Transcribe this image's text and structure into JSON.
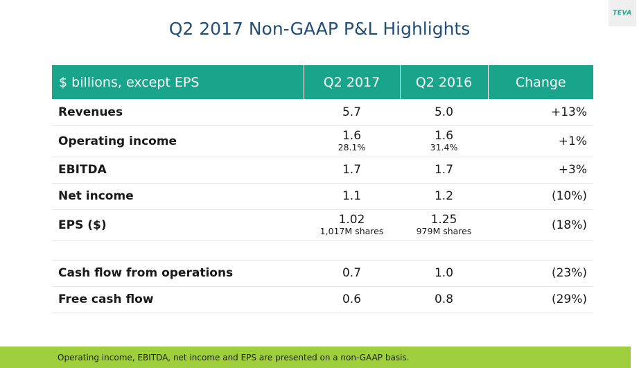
{
  "logo": {
    "text": "TEVA"
  },
  "title": "Q2 2017 Non-GAAP P&L Highlights",
  "table": {
    "headers": [
      "$ billions, except EPS",
      "Q2 2017",
      "Q2 2016",
      "Change"
    ],
    "rows": [
      {
        "label": "Revenues",
        "q2_2017": "5.7",
        "q2_2016": "5.0",
        "change": "+13%"
      },
      {
        "label": "Operating income",
        "q2_2017": "1.6",
        "q2_2017_sub": "28.1%",
        "q2_2016": "1.6",
        "q2_2016_sub": "31.4%",
        "change": "+1%"
      },
      {
        "label": "EBITDA",
        "q2_2017": "1.7",
        "q2_2016": "1.7",
        "change": "+3%"
      },
      {
        "label": "Net income",
        "q2_2017": "1.1",
        "q2_2016": "1.2",
        "change": "(10%)"
      },
      {
        "label": "EPS ($)",
        "q2_2017": "1.02",
        "q2_2017_sub": "1,017M shares",
        "q2_2016": "1.25",
        "q2_2016_sub": "979M shares",
        "change": "(18%)"
      },
      {
        "label": "Cash flow from operations",
        "q2_2017": "0.7",
        "q2_2016": "1.0",
        "change": "(23%)"
      },
      {
        "label": "Free cash flow",
        "q2_2017": "0.6",
        "q2_2016": "0.8",
        "change": "(29%)"
      }
    ]
  },
  "footer": {
    "note": "Operating income, EBITDA, net income and EPS are presented on a non-GAAP basis."
  },
  "colors": {
    "header_bg": "#19a58c",
    "title": "#1f4e79",
    "footer_bg": "#9fcf3c"
  }
}
